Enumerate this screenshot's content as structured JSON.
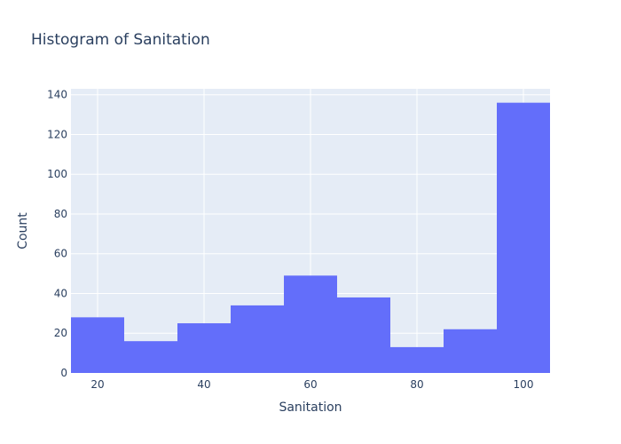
{
  "chart_data": {
    "type": "bar",
    "subtype": "histogram",
    "title": "Histogram of Sanitation",
    "xlabel": "Sanitation",
    "ylabel": "Count",
    "bins": [
      {
        "start": 15,
        "end": 25,
        "count": 28
      },
      {
        "start": 25,
        "end": 35,
        "count": 16
      },
      {
        "start": 35,
        "end": 45,
        "count": 25
      },
      {
        "start": 45,
        "end": 55,
        "count": 34
      },
      {
        "start": 55,
        "end": 65,
        "count": 49
      },
      {
        "start": 65,
        "end": 75,
        "count": 38
      },
      {
        "start": 75,
        "end": 85,
        "count": 13
      },
      {
        "start": 85,
        "end": 95,
        "count": 22
      },
      {
        "start": 95,
        "end": 105,
        "count": 136
      }
    ],
    "xlim": [
      15,
      105
    ],
    "ylim": [
      0,
      143
    ],
    "xticks": [
      "20",
      "40",
      "60",
      "80",
      "100"
    ],
    "yticks": [
      "0",
      "20",
      "40",
      "60",
      "80",
      "100",
      "120",
      "140"
    ],
    "grid": true,
    "legend": "none",
    "colors": {
      "bar": "#636efa",
      "plot_background": "#e5ecf6",
      "grid": "#ffffff",
      "text": "#2a3f5f"
    }
  }
}
